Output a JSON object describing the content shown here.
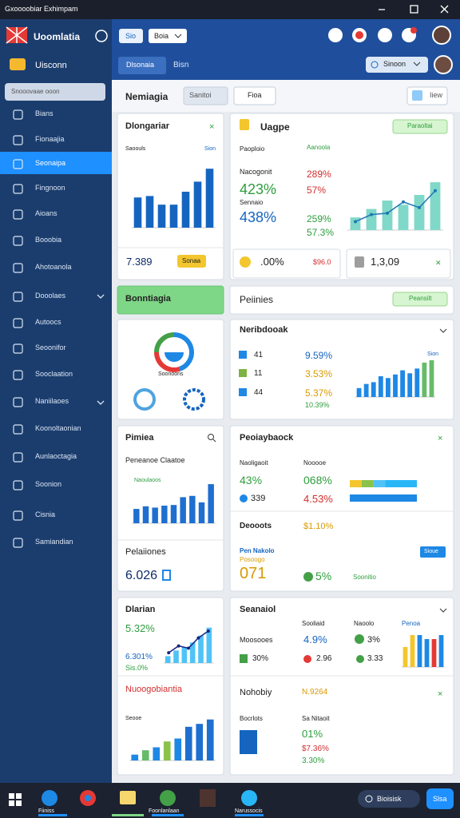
{
  "title_bar": {
    "title": "Gxoooobiar Exhimpam"
  },
  "sidebar": {
    "brand": "Uoomlatia",
    "workspace": "Uisconn",
    "search": "Snooovaae ooon",
    "active": 2,
    "nav": [
      "Bians",
      "Fionaajia",
      "Seonaipa",
      "Fingnoon",
      "Aioans",
      "Booobia",
      "Ahotoanola",
      "Dooolaes",
      "Autoocs",
      "Seoonifor",
      "Sooclaation",
      "Naniilaoes",
      "Koonoltaonian",
      "Aunlaoctagia",
      "Soonion",
      "Cisnia",
      "Samiandian"
    ]
  },
  "header": {
    "buttons": [
      "Sio",
      "Boia"
    ],
    "tabs": [
      "Dlsonaia",
      "Bisn"
    ],
    "search": "Sinoon"
  },
  "page": {
    "title": "Nemiagia",
    "buttons": [
      "Sanitoi",
      "Fioa"
    ],
    "action": "Iiew"
  },
  "cards": [
    {
      "title": "Dlongariar",
      "legend": "Saoouls",
      "tag": "Sion",
      "value": "7.389",
      "badge": "Sonaa"
    },
    {
      "title": "Uagpe",
      "button": "Paraoltai",
      "label1": "Paoploio",
      "label2": "Nacogonit",
      "value1": "423%",
      "label3": "Sennaio",
      "value2": "438%",
      "mid_label": "Aanoola",
      "mid_values": [
        "289%",
        "57%",
        "259%",
        "57.3%"
      ],
      "bottom": [
        ".00%",
        "$96.0",
        "1,3,09"
      ]
    },
    {
      "title": "Bonntiagia"
    },
    {
      "title": "Peiinies",
      "button": "Peansilt"
    },
    {
      "label": "Soonoons"
    },
    {
      "title": "Neribdooak",
      "legend": "Sion",
      "rows": [
        {
          "count": "41",
          "value": "9.59%"
        },
        {
          "count": "11",
          "value": "3.53%"
        },
        {
          "count": "44",
          "value": "5.37%"
        }
      ],
      "extra": "10.39%"
    },
    {
      "title": "Pimiea",
      "subtitle": "Peneanoe Claatoe",
      "legend": "Naoulaoos",
      "section": "Pelaiiones",
      "value": "6.026"
    },
    {
      "title": "Peoiaybaock",
      "labels": [
        "Naoligaoit",
        "Nooooe"
      ],
      "values": [
        "43%",
        "068%",
        "339",
        "4.53%"
      ],
      "section": "Deooots",
      "section_value": "$1.10%",
      "sub_title": "Pen Nakolo",
      "sub_label": "Posoogo",
      "big": "071",
      "pct": "5%",
      "note": "Soonitio",
      "button": "Sioue"
    },
    {
      "title": "Dlarian",
      "value1": "5.32%",
      "value2": "6.301%",
      "value3": "Sis.0%",
      "title2": "Nuoogobiantia",
      "legend": "Seooe"
    },
    {
      "title": "Seanaiol",
      "columns": [
        "Sooliaid",
        "Naoolo",
        "Penoa"
      ],
      "row_label": "Moosooes",
      "values": [
        "4.9%",
        "3%",
        "30%",
        "2.96",
        "3.33"
      ],
      "section": "Nohobiy",
      "section_value": "N.9264",
      "labels": [
        "Bocrlots",
        "Sa Nitaoit"
      ],
      "stats": [
        "01%",
        "$7.36%",
        "3.30%"
      ]
    }
  ],
  "charts": [
    {
      "type": "bar",
      "values": [
        42,
        44,
        32,
        32,
        50,
        64,
        82
      ],
      "ylim": [
        0,
        100
      ],
      "color": "#1565c0"
    },
    {
      "type": "combo",
      "values": [
        18,
        30,
        42,
        36,
        50,
        68
      ],
      "ylim": [
        0,
        100
      ],
      "color": "#7fd8c8",
      "line_values": [
        12,
        22,
        24,
        40,
        32,
        56
      ],
      "line_color": "#1f77b4"
    },
    {
      "type": "donut",
      "values": [
        45,
        30,
        25
      ],
      "colors": [
        "#1e88e5",
        "#e53935",
        "#43a047"
      ]
    },
    {
      "type": "bar",
      "values": [
        15,
        22,
        25,
        35,
        32,
        38,
        45,
        40,
        48,
        58,
        62
      ],
      "ylim": [
        0,
        70
      ],
      "color": "#1e88e5",
      "colors": [
        "#1e88e5",
        "#1e88e5",
        "#1e88e5",
        "#1e88e5",
        "#1e88e5",
        "#1e88e5",
        "#1e88e5",
        "#1e88e5",
        "#1e88e5",
        "#66bb6a",
        "#66bb6a"
      ]
    },
    {
      "type": "bar",
      "values": [
        22,
        26,
        24,
        27,
        28,
        40,
        42,
        32,
        60
      ],
      "ylim": [
        0,
        65
      ],
      "color": "#1e6fd0"
    },
    {
      "type": "combo",
      "values": [
        12,
        22,
        28,
        36,
        48,
        62
      ],
      "ylim": [
        0,
        70
      ],
      "color": "#4fc3f7",
      "line_values": [
        18,
        30,
        26,
        44,
        56
      ],
      "line_color": "#1a237e"
    },
    {
      "type": "bar",
      "values": [
        8,
        14,
        18,
        26,
        30,
        46,
        50,
        56
      ],
      "ylim": [
        0,
        60
      ],
      "color": "#1e6fd0",
      "colors": [
        "#1e88e5",
        "#66bb6a",
        "#1e88e5",
        "#8bc34a",
        "#1e88e5",
        "#1e6fd0",
        "#1e6fd0",
        "#1e6fd0"
      ]
    },
    {
      "type": "hbar",
      "rows": [
        [
          15,
          15,
          15,
          40
        ],
        [
          85
        ]
      ],
      "xlim": [
        0,
        85
      ],
      "colors": [
        "#f3c62d",
        "#8bc34a",
        "#4fc3f7",
        "#29b6f6"
      ]
    },
    {
      "type": "bar",
      "values": [
        10,
        16,
        16,
        14,
        14,
        16
      ],
      "ylim": [
        0,
        18
      ],
      "color": "#1e88e5",
      "colors": [
        "#f3c62d",
        "#f3c62d",
        "#1e88e5",
        "#1e88e5",
        "#e53935",
        "#1e88e5"
      ]
    }
  ],
  "taskbar": {
    "apps": [
      "Fiiniss",
      "Foonlanlaan",
      "Narussocis"
    ],
    "search": "Bioisisk",
    "button": "Slsa"
  }
}
